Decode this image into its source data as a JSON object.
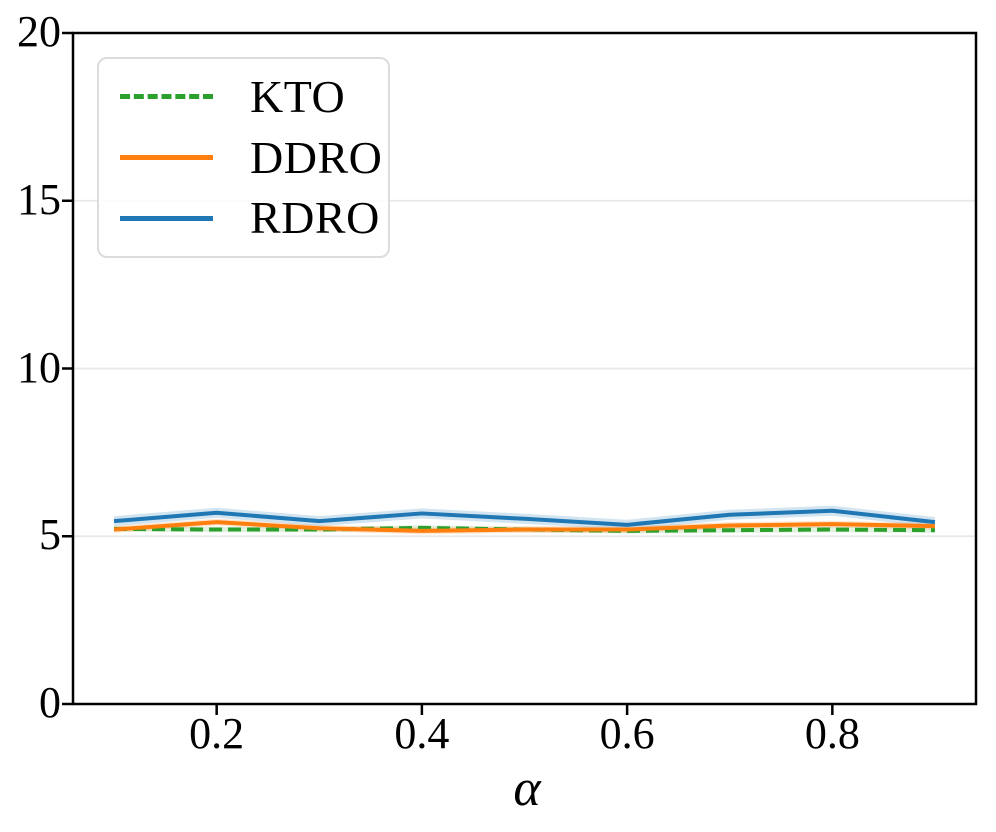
{
  "colors": {
    "grid": "#e8e8e8",
    "spine": "#000000",
    "legend_border": "#dcdcdc",
    "background": "#ffffff"
  },
  "chart_data": {
    "type": "line",
    "title": "",
    "xlabel": "α",
    "ylabel": "",
    "x": [
      0.1,
      0.2,
      0.3,
      0.4,
      0.5,
      0.6,
      0.7,
      0.8,
      0.9
    ],
    "xlim": [
      0.06,
      0.94
    ],
    "ylim": [
      0,
      20
    ],
    "xticks": [
      0.2,
      0.4,
      0.6,
      0.8
    ],
    "xtick_labels": [
      "0.2",
      "0.4",
      "0.6",
      "0.8"
    ],
    "yticks": [
      0,
      5,
      10,
      15,
      20
    ],
    "ytick_labels": [
      "0",
      "5",
      "10",
      "15",
      "20"
    ],
    "grid": true,
    "legend_position": "upper-left",
    "series": [
      {
        "name": "KTO",
        "color": "#2ca02c",
        "dash": "dashed",
        "values": [
          5.22,
          5.2,
          5.2,
          5.25,
          5.2,
          5.16,
          5.18,
          5.2,
          5.18
        ],
        "band": 0.08,
        "band_alpha": 0.15
      },
      {
        "name": "DDRO",
        "color": "#ff7f0e",
        "dash": "solid",
        "values": [
          5.2,
          5.42,
          5.24,
          5.16,
          5.2,
          5.2,
          5.32,
          5.36,
          5.3
        ],
        "band": 0.1,
        "band_alpha": 0.2
      },
      {
        "name": "RDRO",
        "color": "#1f77b4",
        "dash": "solid",
        "values": [
          5.45,
          5.7,
          5.45,
          5.68,
          5.52,
          5.34,
          5.64,
          5.76,
          5.42
        ],
        "band": 0.15,
        "band_alpha": 0.2
      }
    ]
  }
}
